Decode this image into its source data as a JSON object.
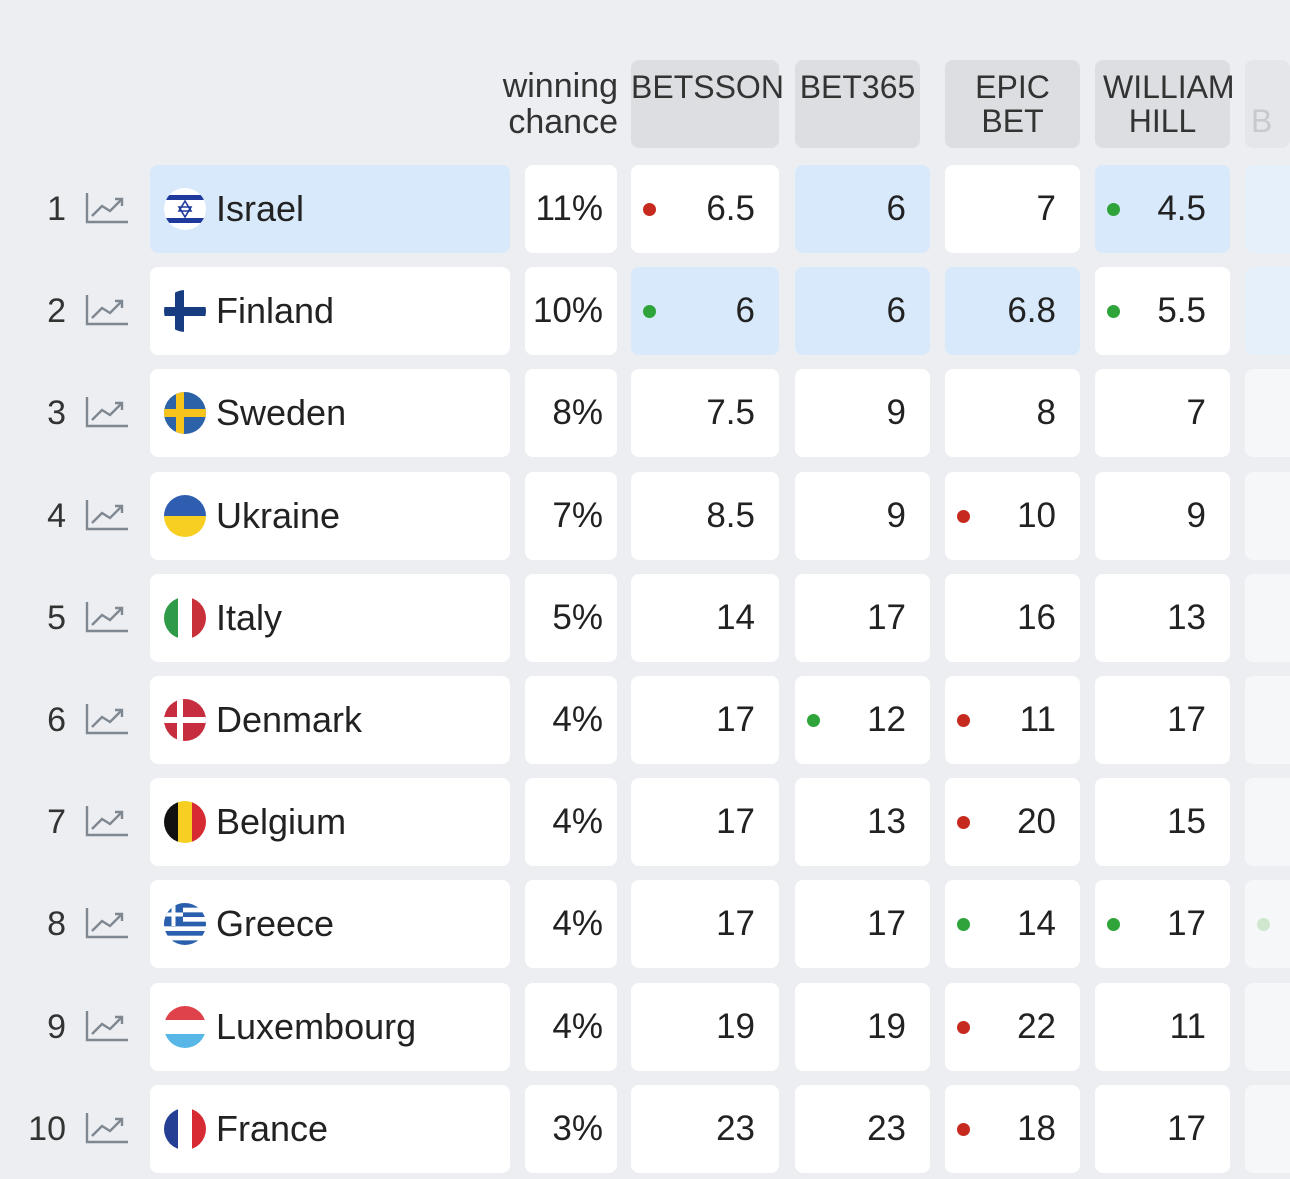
{
  "header": {
    "winning_chance": "winning chance",
    "bookmakers": [
      {
        "label": "BETSSON"
      },
      {
        "label": "BET365"
      },
      {
        "label": "EPIC BET"
      },
      {
        "label": "WILLIAM HILL"
      },
      {
        "label": "B"
      }
    ]
  },
  "colors": {
    "highlight": "#d7e9fb",
    "dot_red": "#c62a1e",
    "dot_green": "#2ea43a",
    "background": "#eceef1"
  },
  "rows": [
    {
      "rank": "1",
      "country": "Israel",
      "flag": "israel-flag-icon",
      "chance": "11%",
      "odds": [
        {
          "value": "6.5",
          "dot": "red",
          "hl": false
        },
        {
          "value": "6",
          "dot": null,
          "hl": true
        },
        {
          "value": "7",
          "dot": null,
          "hl": false
        },
        {
          "value": "4.5",
          "dot": "green",
          "hl": true
        }
      ],
      "country_hl": true,
      "next_hl": true,
      "next_dot": false
    },
    {
      "rank": "2",
      "country": "Finland",
      "flag": "finland-flag-icon",
      "chance": "10%",
      "odds": [
        {
          "value": "6",
          "dot": "green",
          "hl": true
        },
        {
          "value": "6",
          "dot": null,
          "hl": true
        },
        {
          "value": "6.8",
          "dot": null,
          "hl": true
        },
        {
          "value": "5.5",
          "dot": "green",
          "hl": false
        }
      ],
      "country_hl": false,
      "next_hl": true,
      "next_dot": false
    },
    {
      "rank": "3",
      "country": "Sweden",
      "flag": "sweden-flag-icon",
      "chance": "8%",
      "odds": [
        {
          "value": "7.5",
          "dot": null,
          "hl": false
        },
        {
          "value": "9",
          "dot": null,
          "hl": false
        },
        {
          "value": "8",
          "dot": null,
          "hl": false
        },
        {
          "value": "7",
          "dot": null,
          "hl": false
        }
      ],
      "country_hl": false,
      "next_hl": false,
      "next_dot": false
    },
    {
      "rank": "4",
      "country": "Ukraine",
      "flag": "ukraine-flag-icon",
      "chance": "7%",
      "odds": [
        {
          "value": "8.5",
          "dot": null,
          "hl": false
        },
        {
          "value": "9",
          "dot": null,
          "hl": false
        },
        {
          "value": "10",
          "dot": "red",
          "hl": false
        },
        {
          "value": "9",
          "dot": null,
          "hl": false
        }
      ],
      "country_hl": false,
      "next_hl": false,
      "next_dot": false
    },
    {
      "rank": "5",
      "country": "Italy",
      "flag": "italy-flag-icon",
      "chance": "5%",
      "odds": [
        {
          "value": "14",
          "dot": null,
          "hl": false
        },
        {
          "value": "17",
          "dot": null,
          "hl": false
        },
        {
          "value": "16",
          "dot": null,
          "hl": false
        },
        {
          "value": "13",
          "dot": null,
          "hl": false
        }
      ],
      "country_hl": false,
      "next_hl": false,
      "next_dot": false
    },
    {
      "rank": "6",
      "country": "Denmark",
      "flag": "denmark-flag-icon",
      "chance": "4%",
      "odds": [
        {
          "value": "17",
          "dot": null,
          "hl": false
        },
        {
          "value": "12",
          "dot": "green",
          "hl": false
        },
        {
          "value": "11",
          "dot": "red",
          "hl": false
        },
        {
          "value": "17",
          "dot": null,
          "hl": false
        }
      ],
      "country_hl": false,
      "next_hl": false,
      "next_dot": false
    },
    {
      "rank": "7",
      "country": "Belgium",
      "flag": "belgium-flag-icon",
      "chance": "4%",
      "odds": [
        {
          "value": "17",
          "dot": null,
          "hl": false
        },
        {
          "value": "13",
          "dot": null,
          "hl": false
        },
        {
          "value": "20",
          "dot": "red",
          "hl": false
        },
        {
          "value": "15",
          "dot": null,
          "hl": false
        }
      ],
      "country_hl": false,
      "next_hl": false,
      "next_dot": false
    },
    {
      "rank": "8",
      "country": "Greece",
      "flag": "greece-flag-icon",
      "chance": "4%",
      "odds": [
        {
          "value": "17",
          "dot": null,
          "hl": false
        },
        {
          "value": "17",
          "dot": null,
          "hl": false
        },
        {
          "value": "14",
          "dot": "green",
          "hl": false
        },
        {
          "value": "17",
          "dot": "green",
          "hl": false
        }
      ],
      "country_hl": false,
      "next_hl": false,
      "next_dot": true
    },
    {
      "rank": "9",
      "country": "Luxembourg",
      "flag": "luxembourg-flag-icon",
      "chance": "4%",
      "odds": [
        {
          "value": "19",
          "dot": null,
          "hl": false
        },
        {
          "value": "19",
          "dot": null,
          "hl": false
        },
        {
          "value": "22",
          "dot": "red",
          "hl": false
        },
        {
          "value": "11",
          "dot": null,
          "hl": false
        }
      ],
      "country_hl": false,
      "next_hl": false,
      "next_dot": false
    },
    {
      "rank": "10",
      "country": "France",
      "flag": "france-flag-icon",
      "chance": "3%",
      "odds": [
        {
          "value": "23",
          "dot": null,
          "hl": false
        },
        {
          "value": "23",
          "dot": null,
          "hl": false
        },
        {
          "value": "18",
          "dot": "red",
          "hl": false
        },
        {
          "value": "17",
          "dot": null,
          "hl": false
        }
      ],
      "country_hl": false,
      "next_hl": false,
      "next_dot": false
    }
  ]
}
